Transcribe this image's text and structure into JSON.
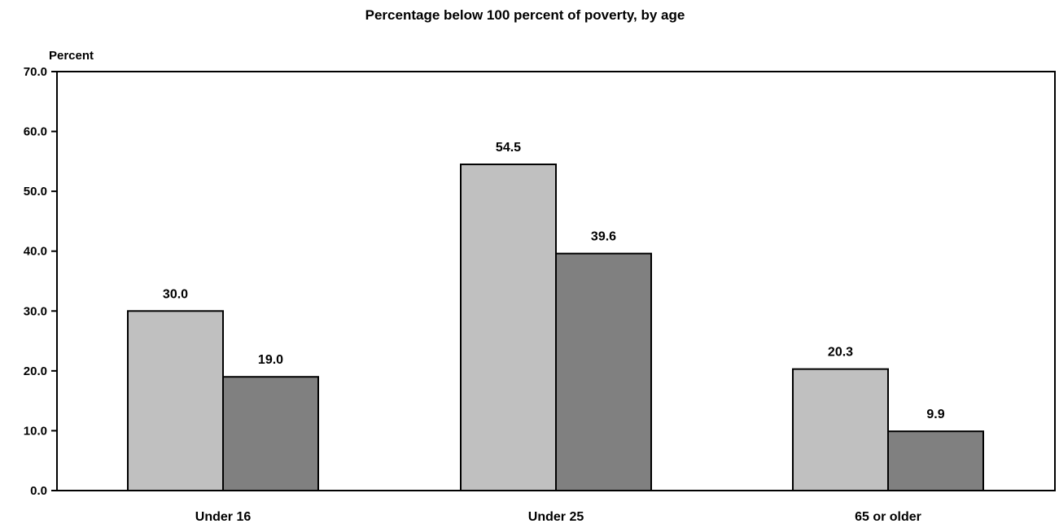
{
  "chart_data": {
    "type": "bar",
    "title": "Percentage below 100 percent of poverty, by age",
    "ylabel": "Percent",
    "xlabel": "",
    "categories": [
      "Under 16",
      "Under 25",
      "65 or older"
    ],
    "series": [
      {
        "values": [
          30.0,
          54.5,
          20.3
        ],
        "color": "#c0c0c0"
      },
      {
        "values": [
          19.0,
          39.6,
          9.9
        ],
        "color": "#808080"
      }
    ],
    "data_labels": [
      [
        "30.0",
        "54.5",
        "20.3"
      ],
      [
        "19.0",
        "39.6",
        "9.9"
      ]
    ],
    "ylim": [
      0,
      70
    ],
    "y_ticks": [
      0,
      10,
      20,
      30,
      40,
      50,
      60,
      70
    ],
    "y_tick_labels": [
      "0.0",
      "10.0",
      "20.0",
      "30.0",
      "40.0",
      "50.0",
      "60.0",
      "70.0"
    ],
    "grid": false,
    "legend": "none"
  }
}
